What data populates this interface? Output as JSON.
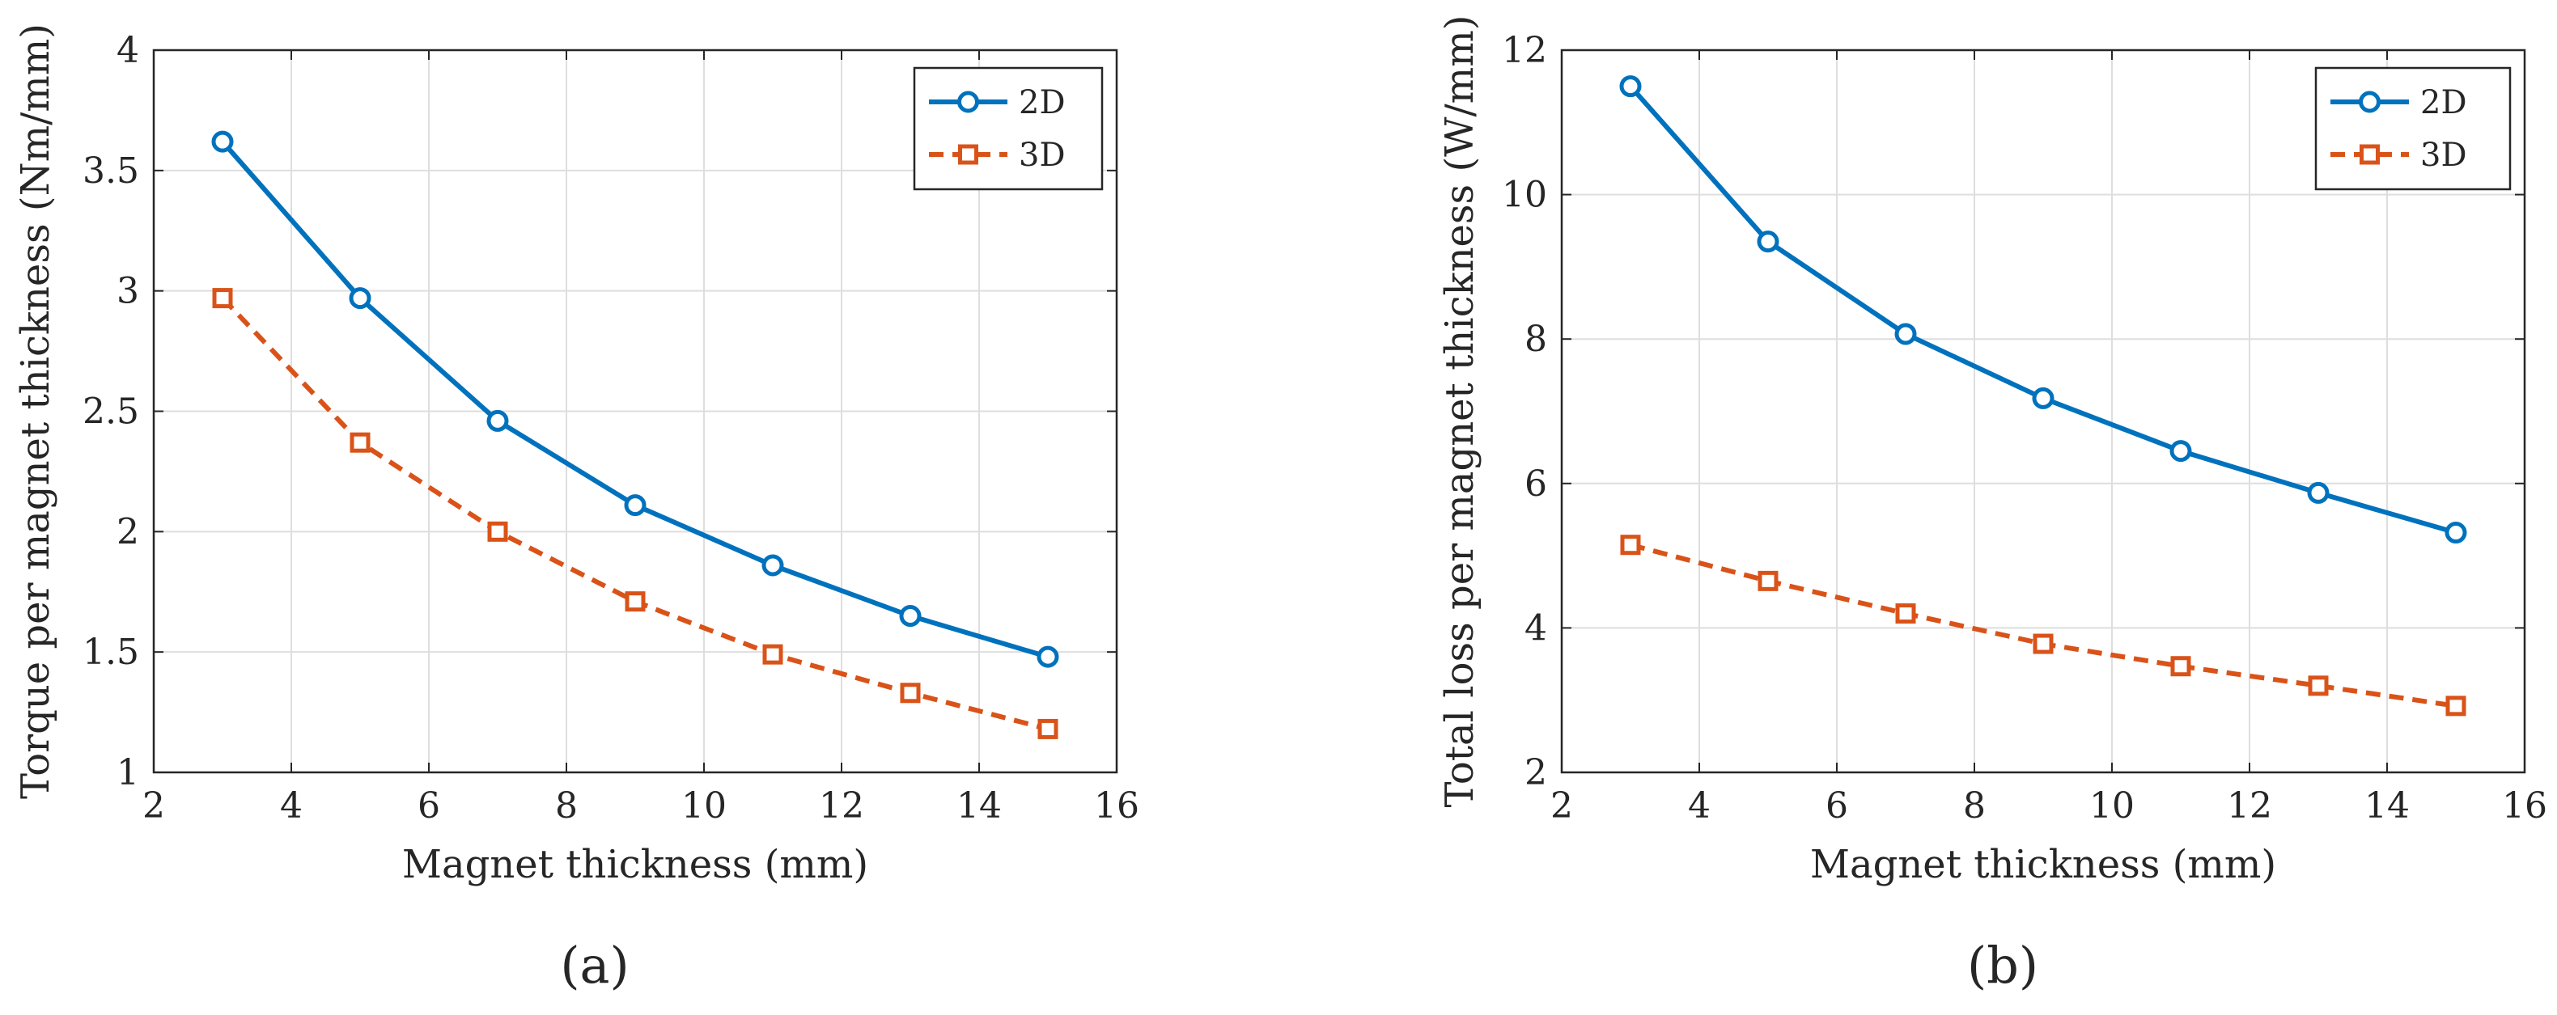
{
  "chart_data": [
    {
      "type": "line",
      "panel_label": "(a)",
      "xlabel": "Magnet thickness (mm)",
      "ylabel": "Torque per magnet thickness (Nm/mm)",
      "xlim": [
        2,
        16
      ],
      "ylim": [
        1,
        4
      ],
      "xticks": [
        2,
        4,
        6,
        8,
        10,
        12,
        14,
        16
      ],
      "yticks": [
        1,
        1.5,
        2,
        2.5,
        3,
        3.5,
        4
      ],
      "xtick_labels": [
        "2",
        "4",
        "6",
        "8",
        "10",
        "12",
        "14",
        "16"
      ],
      "ytick_labels": [
        "1",
        "1.5",
        "2",
        "2.5",
        "3",
        "3.5",
        "4"
      ],
      "grid": true,
      "legend_position": "top-right",
      "x": [
        3,
        5,
        7,
        9,
        11,
        13,
        15
      ],
      "series": [
        {
          "name": "2D",
          "values": [
            3.62,
            2.97,
            2.46,
            2.11,
            1.86,
            1.65,
            1.48
          ],
          "color": "#0072BD",
          "style": "solid",
          "marker": "circle"
        },
        {
          "name": "3D",
          "values": [
            2.97,
            2.37,
            2.0,
            1.71,
            1.49,
            1.33,
            1.18
          ],
          "color": "#D95319",
          "style": "dashed",
          "marker": "square"
        }
      ]
    },
    {
      "type": "line",
      "panel_label": "(b)",
      "xlabel": "Magnet thickness (mm)",
      "ylabel": "Total loss per magnet thickness (W/mm)",
      "xlim": [
        2,
        16
      ],
      "ylim": [
        2,
        12
      ],
      "xticks": [
        2,
        4,
        6,
        8,
        10,
        12,
        14,
        16
      ],
      "yticks": [
        2,
        4,
        6,
        8,
        10,
        12
      ],
      "xtick_labels": [
        "2",
        "4",
        "6",
        "8",
        "10",
        "12",
        "14",
        "16"
      ],
      "ytick_labels": [
        "2",
        "4",
        "6",
        "8",
        "10",
        "12"
      ],
      "grid": true,
      "legend_position": "top-right",
      "x": [
        3,
        5,
        7,
        9,
        11,
        13,
        15
      ],
      "series": [
        {
          "name": "2D",
          "values": [
            11.5,
            9.35,
            8.07,
            7.18,
            6.45,
            5.87,
            5.32
          ],
          "color": "#0072BD",
          "style": "solid",
          "marker": "circle"
        },
        {
          "name": "3D",
          "values": [
            5.15,
            4.65,
            4.2,
            3.78,
            3.47,
            3.2,
            2.92
          ],
          "color": "#D95319",
          "style": "dashed",
          "marker": "square"
        }
      ]
    }
  ]
}
